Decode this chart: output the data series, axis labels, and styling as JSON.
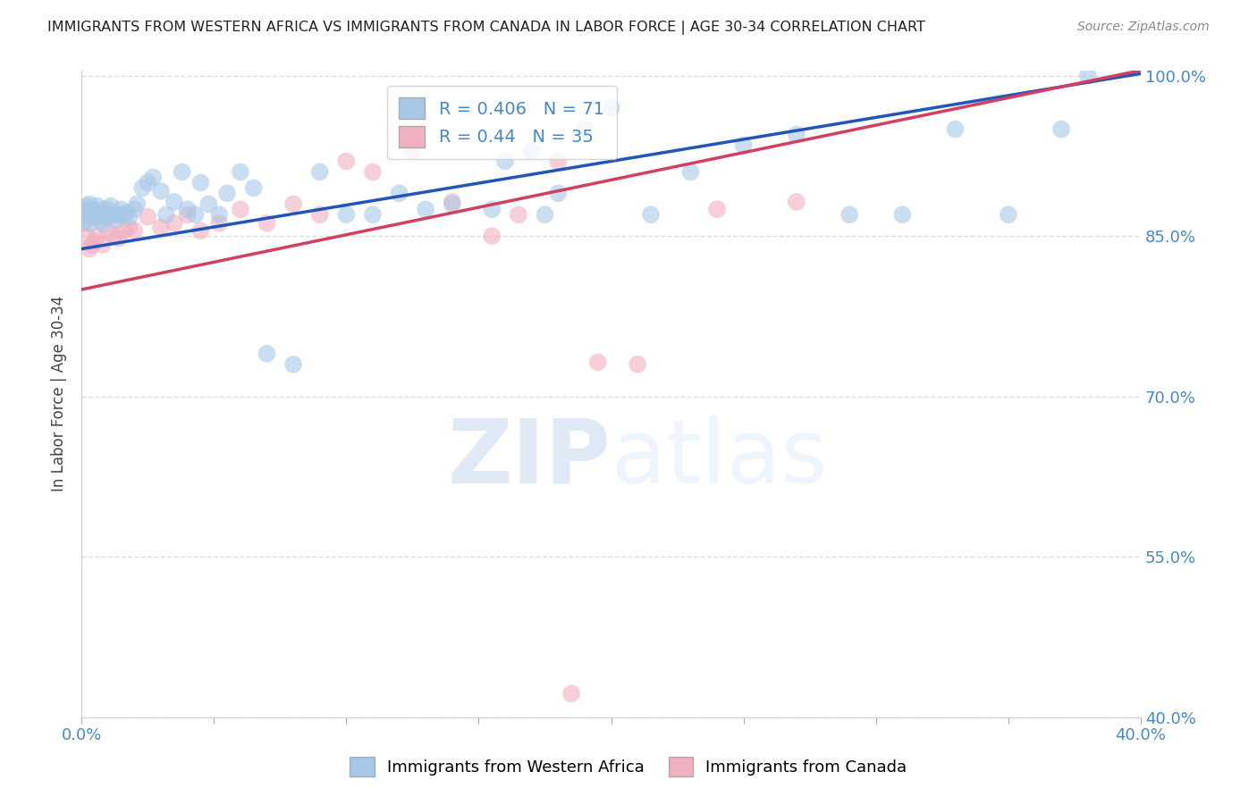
{
  "title": "IMMIGRANTS FROM WESTERN AFRICA VS IMMIGRANTS FROM CANADA IN LABOR FORCE | AGE 30-34 CORRELATION CHART",
  "source": "Source: ZipAtlas.com",
  "ylabel": "In Labor Force | Age 30-34",
  "xmin": 0.0,
  "xmax": 0.4,
  "ymin": 0.4,
  "ymax": 1.005,
  "ytick_vals": [
    1.0,
    0.85,
    0.7,
    0.55,
    0.4
  ],
  "ytick_labels": [
    "100.0%",
    "85.0%",
    "70.0%",
    "55.0%",
    "40.0%"
  ],
  "xtick_vals": [
    0.0,
    0.05,
    0.1,
    0.15,
    0.2,
    0.25,
    0.3,
    0.35,
    0.4
  ],
  "xtick_labels": [
    "0.0%",
    "",
    "",
    "",
    "",
    "",
    "",
    "",
    "40.0%"
  ],
  "blue_R": 0.406,
  "blue_N": 71,
  "pink_R": 0.44,
  "pink_N": 35,
  "blue_label": "Immigrants from Western Africa",
  "pink_label": "Immigrants from Canada",
  "blue_color": "#a8c8e8",
  "pink_color": "#f0b0c0",
  "blue_line_color": "#2255bb",
  "pink_line_color": "#d04060",
  "blue_line_x0": 0.0,
  "blue_line_y0": 0.838,
  "blue_line_x1": 0.4,
  "blue_line_y1": 1.002,
  "pink_line_x0": 0.0,
  "pink_line_y0": 0.8,
  "pink_line_x1": 0.4,
  "pink_line_y1": 1.005,
  "blue_scatter_x": [
    0.001,
    0.001,
    0.002,
    0.002,
    0.002,
    0.003,
    0.003,
    0.003,
    0.004,
    0.004,
    0.005,
    0.005,
    0.006,
    0.006,
    0.007,
    0.007,
    0.008,
    0.008,
    0.009,
    0.01,
    0.01,
    0.011,
    0.012,
    0.013,
    0.014,
    0.015,
    0.016,
    0.017,
    0.018,
    0.02,
    0.021,
    0.023,
    0.025,
    0.027,
    0.03,
    0.032,
    0.035,
    0.038,
    0.04,
    0.043,
    0.045,
    0.048,
    0.052,
    0.055,
    0.06,
    0.065,
    0.07,
    0.08,
    0.09,
    0.1,
    0.11,
    0.12,
    0.13,
    0.14,
    0.155,
    0.16,
    0.17,
    0.175,
    0.18,
    0.19,
    0.2,
    0.215,
    0.23,
    0.25,
    0.27,
    0.29,
    0.31,
    0.33,
    0.35,
    0.37,
    0.38
  ],
  "blue_scatter_y": [
    0.87,
    0.875,
    0.865,
    0.878,
    0.872,
    0.87,
    0.88,
    0.862,
    0.87,
    0.875,
    0.868,
    0.873,
    0.87,
    0.878,
    0.865,
    0.87,
    0.875,
    0.862,
    0.87,
    0.868,
    0.875,
    0.878,
    0.87,
    0.865,
    0.87,
    0.875,
    0.87,
    0.872,
    0.868,
    0.875,
    0.88,
    0.895,
    0.9,
    0.905,
    0.892,
    0.87,
    0.882,
    0.91,
    0.875,
    0.87,
    0.9,
    0.88,
    0.87,
    0.89,
    0.91,
    0.895,
    0.74,
    0.73,
    0.91,
    0.87,
    0.87,
    0.89,
    0.875,
    0.88,
    0.875,
    0.92,
    0.93,
    0.87,
    0.89,
    0.95,
    0.97,
    0.87,
    0.91,
    0.935,
    0.945,
    0.87,
    0.87,
    0.95,
    0.87,
    0.95,
    1.0
  ],
  "pink_scatter_x": [
    0.001,
    0.002,
    0.003,
    0.004,
    0.005,
    0.006,
    0.008,
    0.01,
    0.012,
    0.014,
    0.016,
    0.018,
    0.02,
    0.025,
    0.03,
    0.035,
    0.04,
    0.045,
    0.052,
    0.06,
    0.07,
    0.08,
    0.09,
    0.1,
    0.11,
    0.125,
    0.14,
    0.155,
    0.165,
    0.18,
    0.195,
    0.21,
    0.24,
    0.27,
    0.185
  ],
  "pink_scatter_y": [
    0.862,
    0.85,
    0.838,
    0.842,
    0.845,
    0.85,
    0.842,
    0.855,
    0.85,
    0.848,
    0.855,
    0.858,
    0.855,
    0.868,
    0.858,
    0.862,
    0.87,
    0.855,
    0.862,
    0.875,
    0.862,
    0.88,
    0.87,
    0.92,
    0.91,
    0.93,
    0.882,
    0.85,
    0.87,
    0.92,
    0.732,
    0.73,
    0.875,
    0.882,
    0.422
  ],
  "watermark_zip": "ZIP",
  "watermark_atlas": "atlas",
  "background_color": "#ffffff",
  "grid_color": "#dddddd",
  "axis_label_color": "#4488cc",
  "title_color": "#222222"
}
